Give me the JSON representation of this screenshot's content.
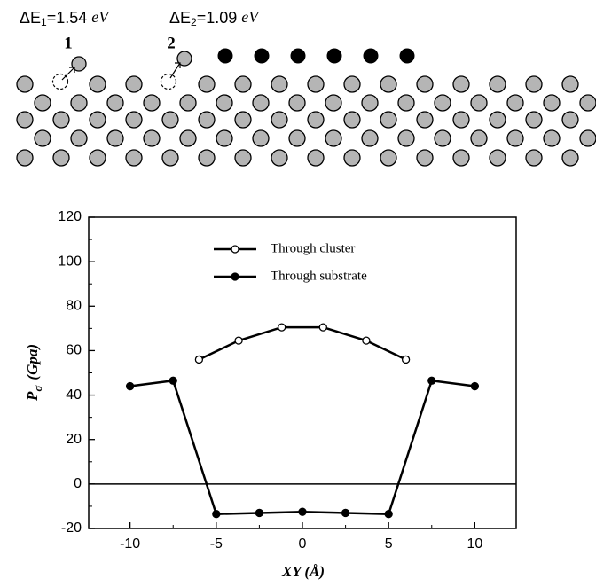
{
  "diagram": {
    "energies": [
      {
        "symbol": "ΔE",
        "index": "1",
        "value": "=1.54",
        "unit": "eV"
      },
      {
        "symbol": "ΔE",
        "index": "2",
        "value": "=1.09",
        "unit": "eV"
      }
    ],
    "sites": [
      "1",
      "2"
    ]
  },
  "chart_data": {
    "type": "line",
    "x_label": "XY (Å)",
    "y_label": {
      "main": "P",
      "subscript": "σ",
      "unit": "(Gpa)"
    },
    "xlim": [
      -12.4,
      12.4
    ],
    "xticks": [
      -10,
      -5,
      0,
      5,
      10
    ],
    "ylim": [
      -20,
      120
    ],
    "yticks": [
      -20,
      0,
      20,
      40,
      60,
      80,
      100,
      120
    ],
    "zero_line": true,
    "legend": "top",
    "series": [
      {
        "name": "Through cluster",
        "color": "#000000",
        "marker": "open",
        "x": [
          -6,
          -3.7,
          -1.2,
          1.2,
          3.7,
          6
        ],
        "values": [
          56,
          64.5,
          70.5,
          70.5,
          64.5,
          56
        ]
      },
      {
        "name": "Through substrate",
        "color": "#000000",
        "marker": "filled",
        "x": [
          -10,
          -7.5,
          -5,
          -2.5,
          0,
          2.5,
          5,
          7.5,
          10
        ],
        "values": [
          44,
          46.5,
          -13.5,
          -13,
          -12.5,
          -13,
          -13.5,
          46.5,
          44
        ]
      }
    ]
  }
}
